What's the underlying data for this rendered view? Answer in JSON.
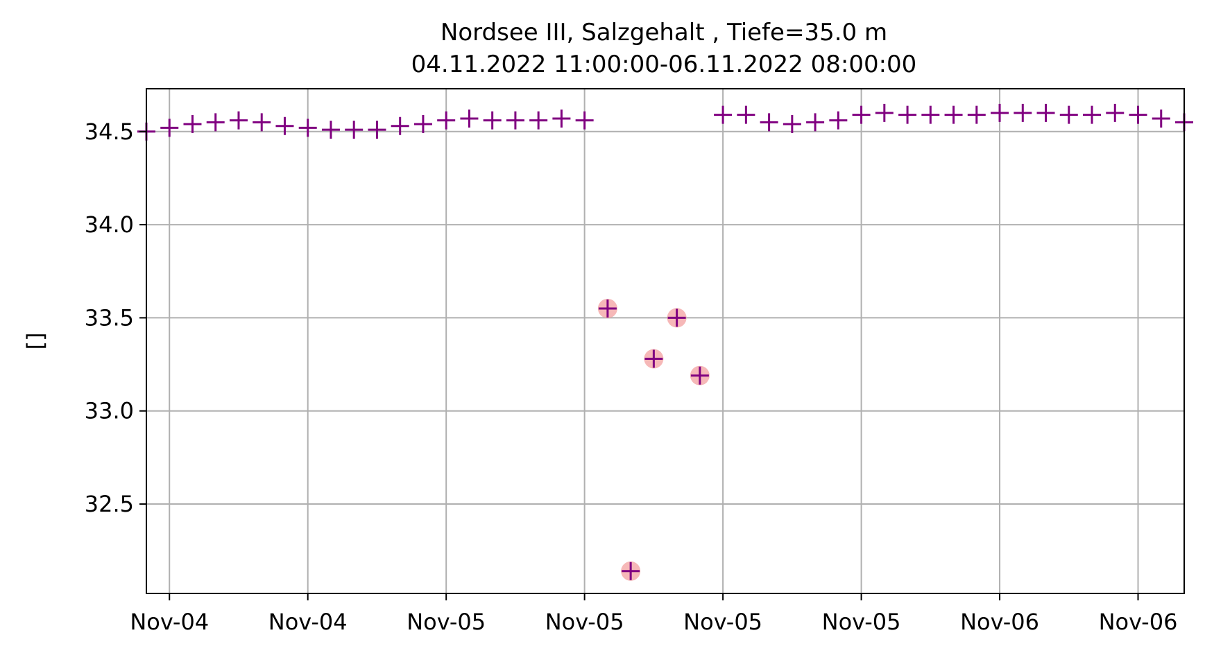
{
  "chart_data": {
    "type": "scatter",
    "title": [
      "Nordsee III, Salzgehalt , Tiefe=35.0 m",
      "04.11.2022 11:00:00-06.11.2022 08:00:00"
    ],
    "xlabel": "",
    "ylabel": "[]",
    "x_ticks": [
      {
        "x": "2022-11-04T12:00",
        "label": "Nov-04"
      },
      {
        "x": "2022-11-04T18:00",
        "label": "Nov-04"
      },
      {
        "x": "2022-11-05T00:00",
        "label": "Nov-05"
      },
      {
        "x": "2022-11-05T06:00",
        "label": "Nov-05"
      },
      {
        "x": "2022-11-05T12:00",
        "label": "Nov-05"
      },
      {
        "x": "2022-11-05T18:00",
        "label": "Nov-05"
      },
      {
        "x": "2022-11-06T00:00",
        "label": "Nov-06"
      },
      {
        "x": "2022-11-06T06:00",
        "label": "Nov-06"
      }
    ],
    "y_ticks": [
      32.5,
      33.0,
      33.5,
      34.0,
      34.5
    ],
    "xlim": [
      "2022-11-04T11:00",
      "2022-11-06T08:00"
    ],
    "ylim": [
      32.02,
      34.73
    ],
    "grid": true,
    "marker_color": "#800080",
    "flag_color": "#f4a6a6",
    "series": [
      {
        "marker": "plus",
        "points": [
          {
            "x": "2022-11-04T11:00",
            "y": 34.5
          },
          {
            "x": "2022-11-04T12:00",
            "y": 34.52
          },
          {
            "x": "2022-11-04T13:00",
            "y": 34.54
          },
          {
            "x": "2022-11-04T14:00",
            "y": 34.55
          },
          {
            "x": "2022-11-04T15:00",
            "y": 34.56
          },
          {
            "x": "2022-11-04T16:00",
            "y": 34.55
          },
          {
            "x": "2022-11-04T17:00",
            "y": 34.53
          },
          {
            "x": "2022-11-04T18:00",
            "y": 34.52
          },
          {
            "x": "2022-11-04T19:00",
            "y": 34.51
          },
          {
            "x": "2022-11-04T20:00",
            "y": 34.51
          },
          {
            "x": "2022-11-04T21:00",
            "y": 34.51
          },
          {
            "x": "2022-11-04T22:00",
            "y": 34.53
          },
          {
            "x": "2022-11-04T23:00",
            "y": 34.54
          },
          {
            "x": "2022-11-05T00:00",
            "y": 34.56
          },
          {
            "x": "2022-11-05T01:00",
            "y": 34.57
          },
          {
            "x": "2022-11-05T02:00",
            "y": 34.56
          },
          {
            "x": "2022-11-05T03:00",
            "y": 34.56
          },
          {
            "x": "2022-11-05T04:00",
            "y": 34.56
          },
          {
            "x": "2022-11-05T05:00",
            "y": 34.57
          },
          {
            "x": "2022-11-05T06:00",
            "y": 34.56
          },
          {
            "x": "2022-11-05T07:00",
            "y": 33.55,
            "flagged": true
          },
          {
            "x": "2022-11-05T08:00",
            "y": 32.14,
            "flagged": true
          },
          {
            "x": "2022-11-05T09:00",
            "y": 33.28,
            "flagged": true
          },
          {
            "x": "2022-11-05T10:00",
            "y": 33.5,
            "flagged": true
          },
          {
            "x": "2022-11-05T11:00",
            "y": 33.19,
            "flagged": true
          },
          {
            "x": "2022-11-05T12:00",
            "y": 34.59
          },
          {
            "x": "2022-11-05T13:00",
            "y": 34.59
          },
          {
            "x": "2022-11-05T14:00",
            "y": 34.55
          },
          {
            "x": "2022-11-05T15:00",
            "y": 34.54
          },
          {
            "x": "2022-11-05T16:00",
            "y": 34.55
          },
          {
            "x": "2022-11-05T17:00",
            "y": 34.56
          },
          {
            "x": "2022-11-05T18:00",
            "y": 34.59
          },
          {
            "x": "2022-11-05T19:00",
            "y": 34.6
          },
          {
            "x": "2022-11-05T20:00",
            "y": 34.59
          },
          {
            "x": "2022-11-05T21:00",
            "y": 34.59
          },
          {
            "x": "2022-11-05T22:00",
            "y": 34.59
          },
          {
            "x": "2022-11-05T23:00",
            "y": 34.59
          },
          {
            "x": "2022-11-06T00:00",
            "y": 34.6
          },
          {
            "x": "2022-11-06T01:00",
            "y": 34.6
          },
          {
            "x": "2022-11-06T02:00",
            "y": 34.6
          },
          {
            "x": "2022-11-06T03:00",
            "y": 34.59
          },
          {
            "x": "2022-11-06T04:00",
            "y": 34.59
          },
          {
            "x": "2022-11-06T05:00",
            "y": 34.6
          },
          {
            "x": "2022-11-06T06:00",
            "y": 34.59
          },
          {
            "x": "2022-11-06T07:00",
            "y": 34.57
          },
          {
            "x": "2022-11-06T08:00",
            "y": 34.55
          }
        ]
      }
    ]
  }
}
